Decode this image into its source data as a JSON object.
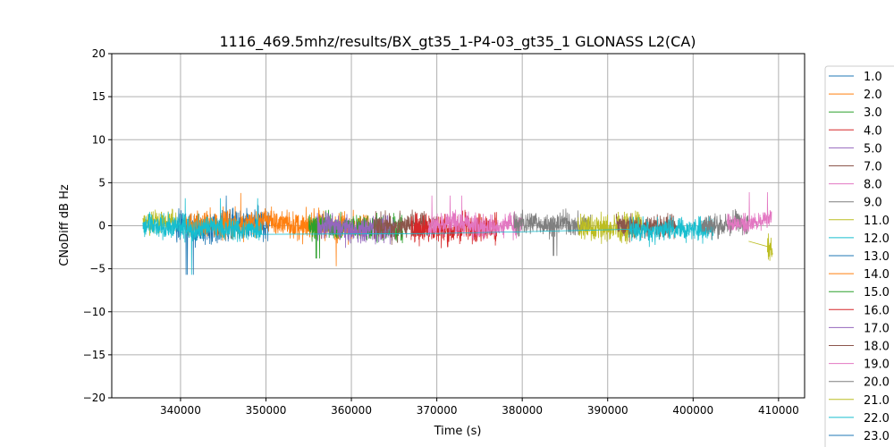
{
  "chart_data": {
    "type": "line",
    "title": "1116_469.5mhz/results/BX_gt35_1-P4-03_gt35_1 GLONASS L2(CA)",
    "xlabel": "Time (s)",
    "ylabel": "CNoDiff dB Hz",
    "xlim": [
      331950,
      413050
    ],
    "ylim": [
      -20,
      20
    ],
    "grid": true,
    "xticks": [
      340000,
      350000,
      360000,
      370000,
      380000,
      390000,
      400000,
      410000
    ],
    "xtick_labels": [
      "340000",
      "350000",
      "360000",
      "370000",
      "380000",
      "390000",
      "400000",
      "410000"
    ],
    "yticks": [
      -20,
      -15,
      -10,
      -5,
      0,
      5,
      10,
      15,
      20
    ],
    "ytick_labels": [
      "−20",
      "−15",
      "−10",
      "−5",
      "0",
      "5",
      "10",
      "15",
      "20"
    ],
    "legend_placement": "outside-right",
    "legend": [
      {
        "label": "1.0",
        "color": "#1f77b4"
      },
      {
        "label": "2.0",
        "color": "#ff7f0e"
      },
      {
        "label": "3.0",
        "color": "#2ca02c"
      },
      {
        "label": "4.0",
        "color": "#d62728"
      },
      {
        "label": "5.0",
        "color": "#9467bd"
      },
      {
        "label": "7.0",
        "color": "#8c564b"
      },
      {
        "label": "8.0",
        "color": "#e377c2"
      },
      {
        "label": "9.0",
        "color": "#7f7f7f"
      },
      {
        "label": "11.0",
        "color": "#bcbd22"
      },
      {
        "label": "12.0",
        "color": "#17becf"
      },
      {
        "label": "13.0",
        "color": "#1f77b4"
      },
      {
        "label": "14.0",
        "color": "#ff7f0e"
      },
      {
        "label": "15.0",
        "color": "#2ca02c"
      },
      {
        "label": "16.0",
        "color": "#d62728"
      },
      {
        "label": "17.0",
        "color": "#9467bd"
      },
      {
        "label": "18.0",
        "color": "#8c564b"
      },
      {
        "label": "19.0",
        "color": "#e377c2"
      },
      {
        "label": "20.0",
        "color": "#7f7f7f"
      },
      {
        "label": "21.0",
        "color": "#bcbd22"
      },
      {
        "label": "22.0",
        "color": "#17becf"
      },
      {
        "label": "23.0",
        "color": "#1f77b4"
      }
    ],
    "series": [
      {
        "name": "11.0",
        "color": "#bcbd22",
        "x": [
          335600,
          339500
        ],
        "mean": 0.3,
        "amp": 1.3
      },
      {
        "name": "1.0",
        "color": "#1f77b4",
        "x": [
          339500,
          350500
        ],
        "mean": 0,
        "amp": 1.8,
        "min": -5.7
      },
      {
        "name": "2.0",
        "color": "#ff7f0e",
        "x": [
          340500,
          362000
        ],
        "mean": 0.2,
        "amp": 1.6,
        "min": -4.7,
        "max": 3.8
      },
      {
        "name": "12.0",
        "color": "#17becf",
        "x": [
          335600,
          349500
        ],
        "mean": -0.3,
        "amp": 1.4,
        "min": -5.7
      },
      {
        "name": "3.0",
        "color": "#2ca02c",
        "x": [
          355000,
          366000
        ],
        "mean": 0,
        "amp": 1.4
      },
      {
        "name": "5.0",
        "color": "#9467bd",
        "x": [
          356000,
          365000
        ],
        "mean": -0.3,
        "amp": 1.5
      },
      {
        "name": "7.0",
        "color": "#8c564b",
        "x": [
          362600,
          370000
        ],
        "mean": 0.2,
        "amp": 1.6,
        "max": 6.4
      },
      {
        "name": "4.0",
        "color": "#d62728",
        "x": [
          367000,
          377000
        ],
        "mean": -0.2,
        "amp": 1.7,
        "min": -5.1,
        "max": 4.5
      },
      {
        "name": "8.0",
        "color": "#e377c2",
        "x": [
          369000,
          380000
        ],
        "mean": 0,
        "amp": 1.4
      },
      {
        "name": "9.0",
        "color": "#7f7f7f",
        "x": [
          379000,
          388000
        ],
        "mean": 0.3,
        "amp": 1.3
      },
      {
        "name": "11.0",
        "color": "#bcbd22",
        "x": [
          386500,
          394000
        ],
        "mean": 0,
        "amp": 1.5
      },
      {
        "name": "18.0",
        "color": "#8c564b",
        "x": [
          391000,
          398000
        ],
        "mean": 0.1,
        "amp": 1.3,
        "max": 5.2
      },
      {
        "name": "12.0",
        "color": "#17becf",
        "x": [
          392500,
          402500
        ],
        "mean": -0.3,
        "amp": 1.4,
        "max": 4.9,
        "min": -4.3
      },
      {
        "name": "20.0",
        "color": "#7f7f7f",
        "x": [
          401000,
          406500
        ],
        "mean": 0.3,
        "amp": 1.3,
        "min": -3.6
      },
      {
        "name": "19.0",
        "color": "#e377c2",
        "x": [
          404000,
          409200
        ],
        "mean": 0.4,
        "amp": 1.1
      },
      {
        "name": "21.0",
        "color": "#bcbd22",
        "x": [
          408700,
          409300
        ],
        "mean": -2.5,
        "amp": 1.5,
        "min": -4.9
      }
    ]
  }
}
